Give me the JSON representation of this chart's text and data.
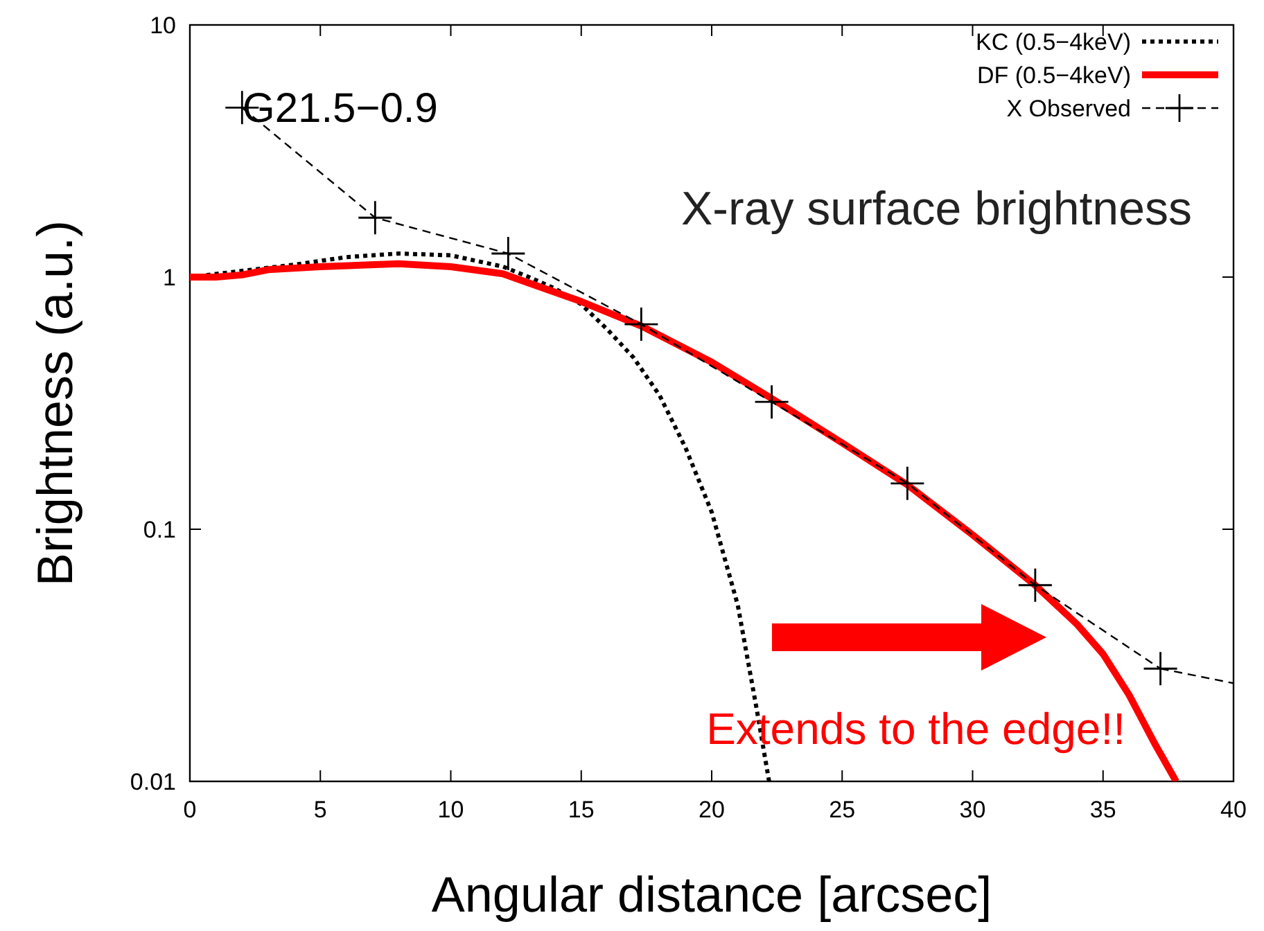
{
  "chart_data": {
    "type": "line",
    "xlabel": "Angular distance [arcsec]",
    "ylabel": "Brightness (a.u.)",
    "log": "y",
    "xlim": [
      0,
      40
    ],
    "ylim": [
      0.01,
      10
    ],
    "xticks": [
      0,
      5,
      10,
      15,
      20,
      25,
      30,
      35,
      40
    ],
    "yticks": [
      0.01,
      0.1,
      1,
      10
    ],
    "grid": false,
    "legend": "top right",
    "annotations": [
      "G21.5−0.9",
      "X-ray surface brightness",
      "Extends to the edge!!"
    ],
    "series": [
      {
        "name": "KC (0.5−4keV)",
        "color": "#000000",
        "line_style": "dotted",
        "marker": "none",
        "x": [
          0,
          4,
          6,
          8,
          10,
          12,
          13,
          14,
          15,
          16,
          17,
          18,
          19,
          20,
          21,
          21.7,
          22.2
        ],
        "values": [
          1,
          1.12,
          1.2,
          1.24,
          1.22,
          1.1,
          1.0,
          0.9,
          0.78,
          0.62,
          0.48,
          0.34,
          0.21,
          0.117,
          0.05,
          0.02,
          0.01
        ]
      },
      {
        "name": "DF (0.5−4keV)",
        "color": "#ff0000",
        "line_style": "solid",
        "marker": "none",
        "x": [
          0,
          1,
          2,
          3,
          5,
          8,
          10,
          12,
          15,
          17.3,
          20,
          22.3,
          25,
          27.5,
          30,
          32.4,
          34,
          35,
          36,
          37,
          37.8
        ],
        "values": [
          1,
          1.0,
          1.02,
          1.07,
          1.1,
          1.13,
          1.1,
          1.03,
          0.8,
          0.64,
          0.46,
          0.33,
          0.22,
          0.15,
          0.095,
          0.06,
          0.042,
          0.032,
          0.022,
          0.014,
          0.01
        ]
      },
      {
        "name": "X Observed",
        "color": "#000000",
        "line_style": "dashed",
        "marker": "cross",
        "x": [
          2,
          7.1,
          12.2,
          17.3,
          22.3,
          27.5,
          32.4,
          37.2
        ],
        "values": [
          4.7,
          1.72,
          1.24,
          0.65,
          0.32,
          0.152,
          0.06,
          0.028
        ]
      },
      {
        "color": "#000000",
        "line_style": "dashed",
        "marker": "none",
        "x": [
          37.2,
          40
        ],
        "values": [
          0.028,
          0.0245
        ]
      }
    ]
  }
}
